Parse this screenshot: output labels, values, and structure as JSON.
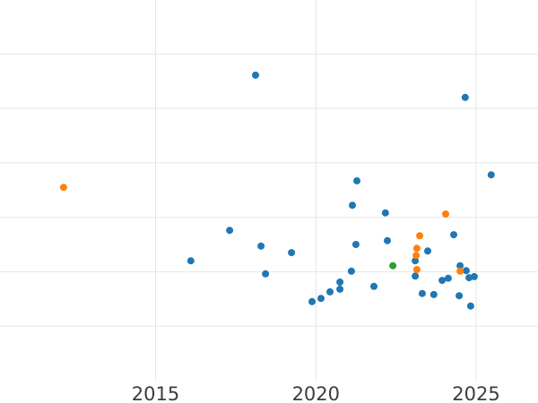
{
  "chart_data": {
    "type": "scatter",
    "title": "",
    "xlabel": "",
    "ylabel": "",
    "legend_position": "none",
    "x_axis": {
      "tick_labels": [
        "2015",
        "2020",
        "2025"
      ],
      "ticks": [
        2015,
        2020,
        2025
      ],
      "range": [
        2010.15,
        2026.93
      ],
      "grid": true
    },
    "y_axis": {
      "tick_labels": [],
      "gridline_values": [
        1,
        2,
        3,
        4,
        5,
        6
      ],
      "range": [
        0,
        6.99
      ],
      "grid": true
    },
    "marker": {
      "shape": "circle",
      "radius_px": 4
    },
    "series": [
      {
        "name": "series-blue",
        "color": "#1f77b4",
        "points": [
          [
            2018.12,
            5.61
          ],
          [
            2024.66,
            5.2
          ],
          [
            2025.47,
            3.78
          ],
          [
            2021.28,
            3.67
          ],
          [
            2021.14,
            3.22
          ],
          [
            2022.17,
            3.08
          ],
          [
            2024.3,
            2.68
          ],
          [
            2017.31,
            2.76
          ],
          [
            2018.29,
            2.47
          ],
          [
            2021.25,
            2.5
          ],
          [
            2022.23,
            2.57
          ],
          [
            2016.1,
            2.2
          ],
          [
            2018.43,
            1.96
          ],
          [
            2019.24,
            2.35
          ],
          [
            2023.49,
            2.38
          ],
          [
            2023.1,
            2.2
          ],
          [
            2021.11,
            2.01
          ],
          [
            2024.5,
            2.11
          ],
          [
            2024.69,
            2.02
          ],
          [
            2023.1,
            1.92
          ],
          [
            2023.94,
            1.84
          ],
          [
            2024.13,
            1.88
          ],
          [
            2024.78,
            1.89
          ],
          [
            2024.94,
            1.91
          ],
          [
            2020.75,
            1.81
          ],
          [
            2020.75,
            1.68
          ],
          [
            2020.44,
            1.63
          ],
          [
            2021.81,
            1.73
          ],
          [
            2023.32,
            1.6
          ],
          [
            2023.68,
            1.58
          ],
          [
            2024.47,
            1.56
          ],
          [
            2020.16,
            1.51
          ],
          [
            2019.88,
            1.45
          ],
          [
            2024.83,
            1.37
          ]
        ]
      },
      {
        "name": "series-orange",
        "color": "#ff7f0e",
        "points": [
          [
            2012.13,
            3.55
          ],
          [
            2024.05,
            3.06
          ],
          [
            2023.24,
            2.66
          ],
          [
            2023.15,
            2.43
          ],
          [
            2023.13,
            2.3
          ],
          [
            2023.15,
            2.04
          ],
          [
            2024.5,
            2.01
          ]
        ]
      },
      {
        "name": "series-green",
        "color": "#2ca02c",
        "points": [
          [
            2022.4,
            2.11
          ]
        ]
      }
    ]
  },
  "style": {
    "background_color": "#ffffff",
    "gridline_color": "#e6e6e6",
    "tick_label_color": "#3d3d3d"
  }
}
